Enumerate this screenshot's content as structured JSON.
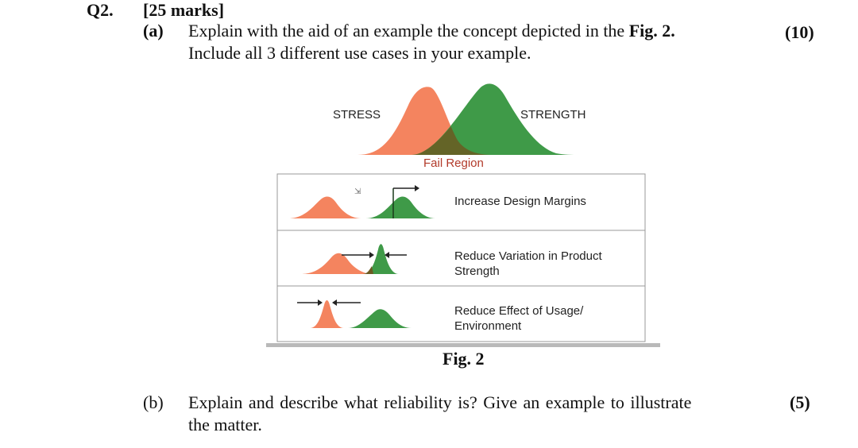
{
  "question": {
    "number": "Q2.",
    "marks": "[25 marks]"
  },
  "part_a": {
    "label": "(a)",
    "line1_prefix": "Explain with the aid of an example the concept depicted in the ",
    "line1_bold": "Fig. 2.",
    "line2": "Include all 3 different use cases in your example.",
    "points": "(10)"
  },
  "figure": {
    "stress_label": "STRESS",
    "strength_label": "STRENGTH",
    "fail_region_label": "Fail Region",
    "rows": [
      {
        "line1": "Increase Design Margins",
        "line2": ""
      },
      {
        "line1": "Reduce Variation in Product",
        "line2": "Strength"
      },
      {
        "line1": "Reduce Effect of Usage/",
        "line2": "Environment"
      }
    ],
    "caption": "Fig. 2",
    "colors": {
      "stress": "#f4845f",
      "strength": "#3f9a48",
      "overlap": "#7a5a2a",
      "fail_text": "#b23a2a"
    }
  },
  "part_b": {
    "label": "(b)",
    "line1": "Explain and describe what reliability is? Give an example to illustrate",
    "line2": "the matter.",
    "points": "(5)"
  }
}
